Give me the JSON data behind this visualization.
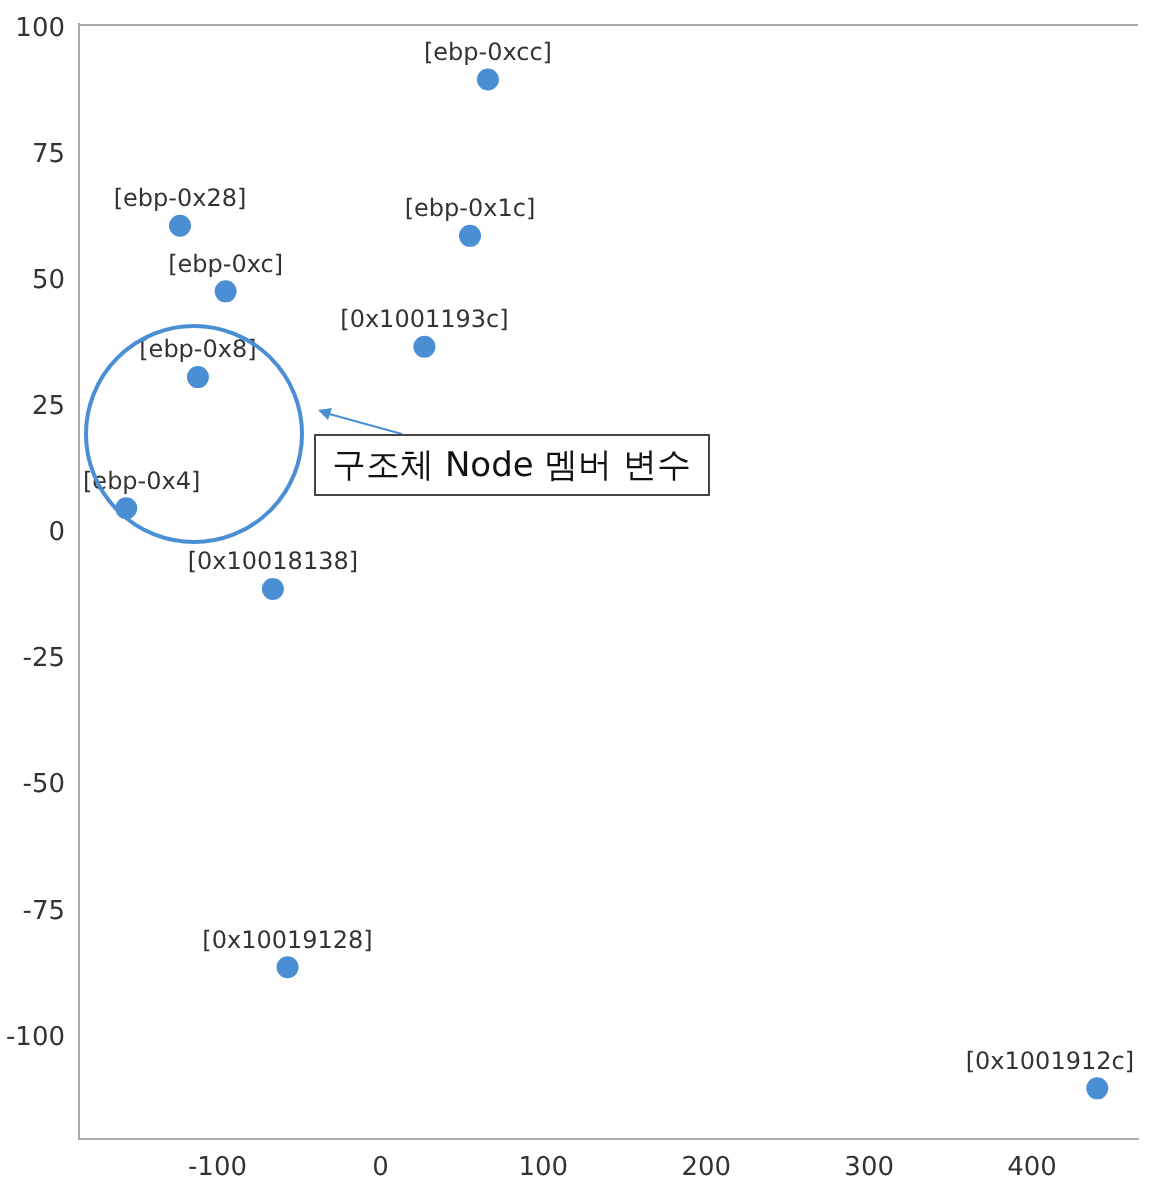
{
  "chart_data": {
    "type": "scatter",
    "x": [
      66,
      -123,
      55,
      -95,
      27,
      -112,
      -156,
      -66,
      -57,
      440
    ],
    "values": [
      90,
      61,
      59,
      48,
      37,
      31,
      5,
      -11,
      -86,
      -110
    ],
    "color": "#4a8fd4",
    "marker": "circle",
    "xlim": [
      -185,
      465
    ],
    "xticks": [
      -100,
      0,
      100,
      200,
      300,
      400
    ],
    "ylim": [
      -120,
      101
    ],
    "yticks": [
      -100,
      -75,
      -50,
      -25,
      0,
      25,
      50,
      75,
      100
    ],
    "grid": false,
    "legend": false,
    "annotations": [
      {
        "text": "[ebp-0xcc]",
        "x": 66,
        "y": 90
      },
      {
        "text": "[ebp-0x28]",
        "x": -123,
        "y": 61
      },
      {
        "text": "[ebp-0x1c]",
        "x": 55,
        "y": 59
      },
      {
        "text": "[ebp-0xc]",
        "x": -95,
        "y": 48
      },
      {
        "text": "[0x1001193c]",
        "x": 27,
        "y": 37
      },
      {
        "text": "[ebp-0x8]",
        "x": -112,
        "y": 31
      },
      {
        "text": "[ebp-0x4]",
        "x": -156,
        "y": 5
      },
      {
        "text": "[0x10018138]",
        "x": -66,
        "y": -11
      },
      {
        "text": "[0x10019128]",
        "x": -57,
        "y": -86
      },
      {
        "text": "[0x1001912c]",
        "x": 440,
        "y": -110
      },
      "구조체 Node 멤버 변수"
    ]
  }
}
